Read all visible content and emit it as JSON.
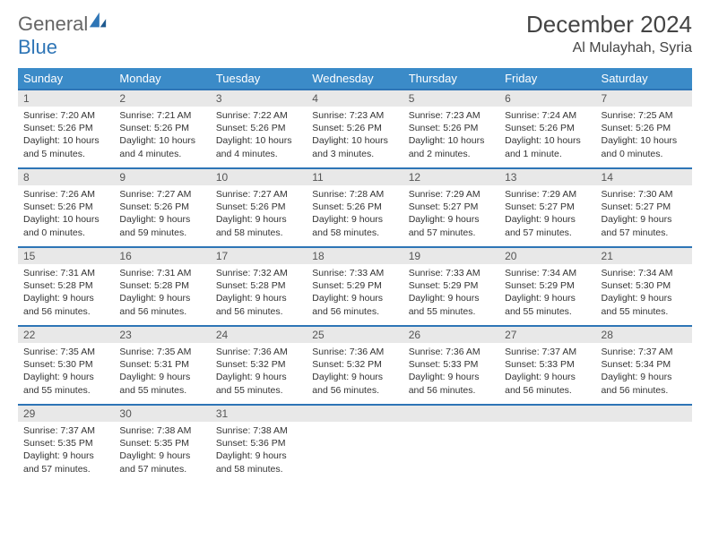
{
  "brand": {
    "part1": "General",
    "part2": "Blue"
  },
  "title": "December 2024",
  "location": "Al Mulayhah, Syria",
  "colors": {
    "header_bg": "#3b8bc8",
    "header_text": "#ffffff",
    "daynum_bg": "#e8e8e8",
    "row_divider": "#2e75b6",
    "body_text": "#333333",
    "brand_gray": "#666666",
    "brand_blue": "#2e75b6",
    "page_bg": "#ffffff"
  },
  "typography": {
    "title_fontsize": 26,
    "location_fontsize": 16,
    "dayheader_fontsize": 13,
    "daynum_fontsize": 12,
    "body_fontsize": 10.5
  },
  "weekdays": [
    "Sunday",
    "Monday",
    "Tuesday",
    "Wednesday",
    "Thursday",
    "Friday",
    "Saturday"
  ],
  "weeks": [
    [
      {
        "n": 1,
        "sr": "7:20 AM",
        "ss": "5:26 PM",
        "dl": "10 hours and 5 minutes."
      },
      {
        "n": 2,
        "sr": "7:21 AM",
        "ss": "5:26 PM",
        "dl": "10 hours and 4 minutes."
      },
      {
        "n": 3,
        "sr": "7:22 AM",
        "ss": "5:26 PM",
        "dl": "10 hours and 4 minutes."
      },
      {
        "n": 4,
        "sr": "7:23 AM",
        "ss": "5:26 PM",
        "dl": "10 hours and 3 minutes."
      },
      {
        "n": 5,
        "sr": "7:23 AM",
        "ss": "5:26 PM",
        "dl": "10 hours and 2 minutes."
      },
      {
        "n": 6,
        "sr": "7:24 AM",
        "ss": "5:26 PM",
        "dl": "10 hours and 1 minute."
      },
      {
        "n": 7,
        "sr": "7:25 AM",
        "ss": "5:26 PM",
        "dl": "10 hours and 0 minutes."
      }
    ],
    [
      {
        "n": 8,
        "sr": "7:26 AM",
        "ss": "5:26 PM",
        "dl": "10 hours and 0 minutes."
      },
      {
        "n": 9,
        "sr": "7:27 AM",
        "ss": "5:26 PM",
        "dl": "9 hours and 59 minutes."
      },
      {
        "n": 10,
        "sr": "7:27 AM",
        "ss": "5:26 PM",
        "dl": "9 hours and 58 minutes."
      },
      {
        "n": 11,
        "sr": "7:28 AM",
        "ss": "5:26 PM",
        "dl": "9 hours and 58 minutes."
      },
      {
        "n": 12,
        "sr": "7:29 AM",
        "ss": "5:27 PM",
        "dl": "9 hours and 57 minutes."
      },
      {
        "n": 13,
        "sr": "7:29 AM",
        "ss": "5:27 PM",
        "dl": "9 hours and 57 minutes."
      },
      {
        "n": 14,
        "sr": "7:30 AM",
        "ss": "5:27 PM",
        "dl": "9 hours and 57 minutes."
      }
    ],
    [
      {
        "n": 15,
        "sr": "7:31 AM",
        "ss": "5:28 PM",
        "dl": "9 hours and 56 minutes."
      },
      {
        "n": 16,
        "sr": "7:31 AM",
        "ss": "5:28 PM",
        "dl": "9 hours and 56 minutes."
      },
      {
        "n": 17,
        "sr": "7:32 AM",
        "ss": "5:28 PM",
        "dl": "9 hours and 56 minutes."
      },
      {
        "n": 18,
        "sr": "7:33 AM",
        "ss": "5:29 PM",
        "dl": "9 hours and 56 minutes."
      },
      {
        "n": 19,
        "sr": "7:33 AM",
        "ss": "5:29 PM",
        "dl": "9 hours and 55 minutes."
      },
      {
        "n": 20,
        "sr": "7:34 AM",
        "ss": "5:29 PM",
        "dl": "9 hours and 55 minutes."
      },
      {
        "n": 21,
        "sr": "7:34 AM",
        "ss": "5:30 PM",
        "dl": "9 hours and 55 minutes."
      }
    ],
    [
      {
        "n": 22,
        "sr": "7:35 AM",
        "ss": "5:30 PM",
        "dl": "9 hours and 55 minutes."
      },
      {
        "n": 23,
        "sr": "7:35 AM",
        "ss": "5:31 PM",
        "dl": "9 hours and 55 minutes."
      },
      {
        "n": 24,
        "sr": "7:36 AM",
        "ss": "5:32 PM",
        "dl": "9 hours and 55 minutes."
      },
      {
        "n": 25,
        "sr": "7:36 AM",
        "ss": "5:32 PM",
        "dl": "9 hours and 56 minutes."
      },
      {
        "n": 26,
        "sr": "7:36 AM",
        "ss": "5:33 PM",
        "dl": "9 hours and 56 minutes."
      },
      {
        "n": 27,
        "sr": "7:37 AM",
        "ss": "5:33 PM",
        "dl": "9 hours and 56 minutes."
      },
      {
        "n": 28,
        "sr": "7:37 AM",
        "ss": "5:34 PM",
        "dl": "9 hours and 56 minutes."
      }
    ],
    [
      {
        "n": 29,
        "sr": "7:37 AM",
        "ss": "5:35 PM",
        "dl": "9 hours and 57 minutes."
      },
      {
        "n": 30,
        "sr": "7:38 AM",
        "ss": "5:35 PM",
        "dl": "9 hours and 57 minutes."
      },
      {
        "n": 31,
        "sr": "7:38 AM",
        "ss": "5:36 PM",
        "dl": "9 hours and 58 minutes."
      },
      null,
      null,
      null,
      null
    ]
  ],
  "labels": {
    "sunrise": "Sunrise:",
    "sunset": "Sunset:",
    "daylight": "Daylight:"
  }
}
